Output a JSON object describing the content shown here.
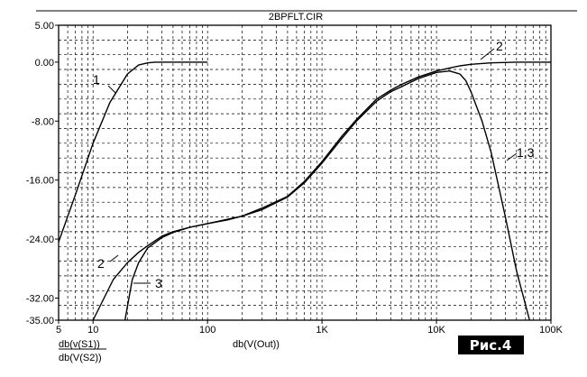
{
  "chart_data": {
    "type": "line",
    "title": "2BPFLT.CIR",
    "x_scale": "log",
    "xlim": [
      5,
      100000
    ],
    "ylim": [
      -35,
      5
    ],
    "grid": true,
    "y_ticks": [
      {
        "value": 5,
        "label": "5.00"
      },
      {
        "value": 0,
        "label": "0.00"
      },
      {
        "value": -8,
        "label": "-8.00"
      },
      {
        "value": -16,
        "label": "-16.00"
      },
      {
        "value": -24,
        "label": "-24.00"
      },
      {
        "value": -32,
        "label": "-32.00"
      },
      {
        "value": -35,
        "label": "-35.00"
      }
    ],
    "x_ticks": [
      {
        "value": 5,
        "label": "5"
      },
      {
        "value": 10,
        "label": "10"
      },
      {
        "value": 100,
        "label": "100"
      },
      {
        "value": 1000,
        "label": "1K"
      },
      {
        "value": 10000,
        "label": "10K"
      },
      {
        "value": 100000,
        "label": "100K"
      }
    ],
    "x_axis_label": "db(V(Out))",
    "legend_lines": [
      "db(v(S1))",
      "db(V(S2))"
    ],
    "series": [
      {
        "name": "1",
        "x": [
          5,
          7,
          10,
          14,
          20,
          25,
          30,
          35,
          40,
          50,
          100
        ],
        "y": [
          -24.4,
          -18,
          -11,
          -5.5,
          -1.6,
          -0.4,
          -0.1,
          0,
          0,
          0,
          0
        ]
      },
      {
        "name": "2",
        "x": [
          10,
          15,
          20,
          25,
          30,
          40,
          50,
          70,
          100,
          150,
          200,
          300,
          500,
          700,
          1000,
          1500,
          2000,
          3000,
          4000,
          5000,
          7000,
          10000,
          13000,
          16000,
          20000,
          30000,
          50000,
          100000
        ],
        "y": [
          -35,
          -29.5,
          -27.2,
          -25.8,
          -24.9,
          -23.6,
          -23,
          -22.4,
          -21.9,
          -21.3,
          -20.9,
          -19.8,
          -18.2,
          -16.2,
          -13.5,
          -10,
          -7.8,
          -5,
          -3.8,
          -3,
          -2,
          -1.2,
          -0.8,
          -0.5,
          -0.3,
          -0.1,
          0,
          0
        ]
      },
      {
        "name": "3",
        "x": [
          19,
          22,
          25,
          30,
          40,
          50,
          70,
          100,
          150,
          200,
          300,
          500,
          700,
          1000,
          1500,
          2000,
          3000,
          4000,
          5000,
          7000,
          10000,
          13000,
          16000,
          18000,
          20000,
          25000,
          30000,
          40000,
          50000,
          65000
        ],
        "y": [
          -35,
          -29.5,
          -27.2,
          -25.2,
          -23.8,
          -23.1,
          -22.4,
          -21.9,
          -21.4,
          -20.9,
          -20,
          -18.3,
          -16.4,
          -13.7,
          -10.3,
          -8,
          -5.3,
          -4,
          -3.3,
          -2.2,
          -1.4,
          -1.2,
          -1.6,
          -2.5,
          -4,
          -8,
          -12.2,
          -21,
          -28.3,
          -35
        ]
      }
    ],
    "annotations": [
      "1",
      "2",
      "3",
      "2",
      "1,3"
    ],
    "figure_label": "Рис.4"
  }
}
